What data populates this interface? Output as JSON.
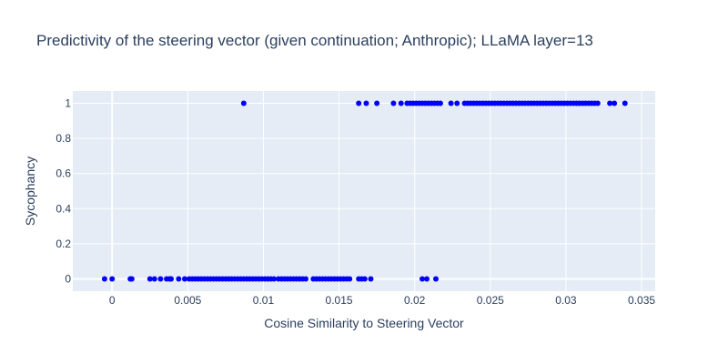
{
  "chart_data": {
    "type": "scatter",
    "title": "Predictivity of the steering vector (given continuation; Anthropic); LLaMA layer=13",
    "xlabel": "Cosine Similarity to Steering Vector",
    "ylabel": "Sycophancy",
    "xlim": [
      -0.0026,
      0.0359
    ],
    "ylim": [
      -0.07,
      1.07
    ],
    "xticks": [
      {
        "v": 0,
        "label": "0"
      },
      {
        "v": 0.005,
        "label": "0.005"
      },
      {
        "v": 0.01,
        "label": "0.01"
      },
      {
        "v": 0.015,
        "label": "0.015"
      },
      {
        "v": 0.02,
        "label": "0.02"
      },
      {
        "v": 0.025,
        "label": "0.025"
      },
      {
        "v": 0.03,
        "label": "0.03"
      },
      {
        "v": 0.035,
        "label": "0.035"
      }
    ],
    "yticks": [
      {
        "v": 0,
        "label": "0"
      },
      {
        "v": 0.2,
        "label": "0.2"
      },
      {
        "v": 0.4,
        "label": "0.4"
      },
      {
        "v": 0.6,
        "label": "0.6"
      },
      {
        "v": 0.8,
        "label": "0.8"
      },
      {
        "v": 1,
        "label": "1"
      }
    ],
    "grid": true,
    "marker_color": "#0000ff",
    "plot_bg": "#e5ecf6",
    "grid_color": "#ffffff",
    "series": [
      {
        "x": [
          -0.0005,
          0.0,
          0.0012,
          0.0013,
          0.0025,
          0.0028,
          0.0032,
          0.0036,
          0.0038,
          0.0039,
          0.0044,
          0.0048,
          0.0051,
          0.0053,
          0.0055,
          0.0057,
          0.0059,
          0.0061,
          0.0063,
          0.0065,
          0.0067,
          0.0069,
          0.0071,
          0.0073,
          0.0075,
          0.0077,
          0.0079,
          0.0081,
          0.0083,
          0.0085,
          0.0087,
          0.0089,
          0.0091,
          0.0093,
          0.0095,
          0.0097,
          0.0099,
          0.0101,
          0.0103,
          0.0105,
          0.0107,
          0.011,
          0.0112,
          0.0114,
          0.0116,
          0.0118,
          0.012,
          0.0122,
          0.0124,
          0.0126,
          0.0128,
          0.0133,
          0.0135,
          0.0137,
          0.0139,
          0.0141,
          0.0143,
          0.0145,
          0.0147,
          0.0149,
          0.0151,
          0.0153,
          0.0155,
          0.0157,
          0.0163,
          0.0165,
          0.0167,
          0.0171,
          0.0205,
          0.0208,
          0.0214
        ],
        "y": [
          0,
          0,
          0,
          0,
          0,
          0,
          0,
          0,
          0,
          0,
          0,
          0,
          0,
          0,
          0,
          0,
          0,
          0,
          0,
          0,
          0,
          0,
          0,
          0,
          0,
          0,
          0,
          0,
          0,
          0,
          0,
          0,
          0,
          0,
          0,
          0,
          0,
          0,
          0,
          0,
          0,
          0,
          0,
          0,
          0,
          0,
          0,
          0,
          0,
          0,
          0,
          0,
          0,
          0,
          0,
          0,
          0,
          0,
          0,
          0,
          0,
          0,
          0,
          0,
          0,
          0,
          0,
          0,
          0,
          0,
          0
        ]
      },
      {
        "x": [
          0.0087,
          0.0163,
          0.0168,
          0.0175,
          0.0186,
          0.0191,
          0.0195,
          0.0197,
          0.0199,
          0.0201,
          0.0203,
          0.0205,
          0.0207,
          0.0209,
          0.0211,
          0.0213,
          0.0215,
          0.0217,
          0.0224,
          0.0228,
          0.0233,
          0.0235,
          0.0237,
          0.0239,
          0.0241,
          0.0243,
          0.0245,
          0.0247,
          0.0249,
          0.0251,
          0.0253,
          0.0255,
          0.0257,
          0.0259,
          0.0261,
          0.0263,
          0.0265,
          0.0267,
          0.0269,
          0.0271,
          0.0273,
          0.0275,
          0.0277,
          0.0279,
          0.0281,
          0.0283,
          0.0285,
          0.0287,
          0.0289,
          0.0291,
          0.0293,
          0.0295,
          0.0297,
          0.0299,
          0.0301,
          0.0303,
          0.0305,
          0.0307,
          0.0309,
          0.0311,
          0.0313,
          0.0315,
          0.0317,
          0.0319,
          0.0321,
          0.0329,
          0.0332,
          0.0339
        ],
        "y": [
          1,
          1,
          1,
          1,
          1,
          1,
          1,
          1,
          1,
          1,
          1,
          1,
          1,
          1,
          1,
          1,
          1,
          1,
          1,
          1,
          1,
          1,
          1,
          1,
          1,
          1,
          1,
          1,
          1,
          1,
          1,
          1,
          1,
          1,
          1,
          1,
          1,
          1,
          1,
          1,
          1,
          1,
          1,
          1,
          1,
          1,
          1,
          1,
          1,
          1,
          1,
          1,
          1,
          1,
          1,
          1,
          1,
          1,
          1,
          1,
          1,
          1,
          1,
          1,
          1,
          1,
          1,
          1
        ]
      }
    ]
  }
}
